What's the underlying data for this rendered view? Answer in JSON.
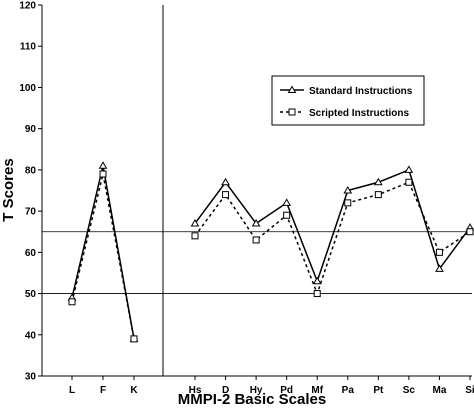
{
  "chart_data": {
    "type": "line",
    "xlabel": "MMPI-2 Basic Scales",
    "ylabel": "T Scores",
    "ylim": [
      30,
      120
    ],
    "yticks": [
      30,
      40,
      50,
      60,
      70,
      80,
      90,
      100,
      110,
      120
    ],
    "categories": [
      "L",
      "F",
      "K",
      "Hs",
      "D",
      "Hy",
      "Pd",
      "Mf",
      "Pa",
      "Pt",
      "Sc",
      "Ma",
      "Si"
    ],
    "groups": [
      {
        "categories": [
          "L",
          "F",
          "K"
        ]
      },
      {
        "categories": [
          "Hs",
          "D",
          "Hy",
          "Pd",
          "Mf",
          "Pa",
          "Pt",
          "Sc",
          "Ma",
          "Si"
        ]
      }
    ],
    "reference_lines": [
      65,
      50
    ],
    "legend_position": "top-right",
    "series": [
      {
        "name": "Standard Instructions",
        "marker": "triangle",
        "line_style": "solid",
        "values": [
          49,
          81,
          39,
          67,
          77,
          67,
          72,
          53,
          75,
          77,
          80,
          56,
          66
        ]
      },
      {
        "name": "Scripted Instructions",
        "marker": "square",
        "line_style": "dashed",
        "values": [
          48,
          79,
          39,
          64,
          74,
          63,
          69,
          50,
          72,
          74,
          77,
          60,
          65
        ]
      }
    ]
  }
}
